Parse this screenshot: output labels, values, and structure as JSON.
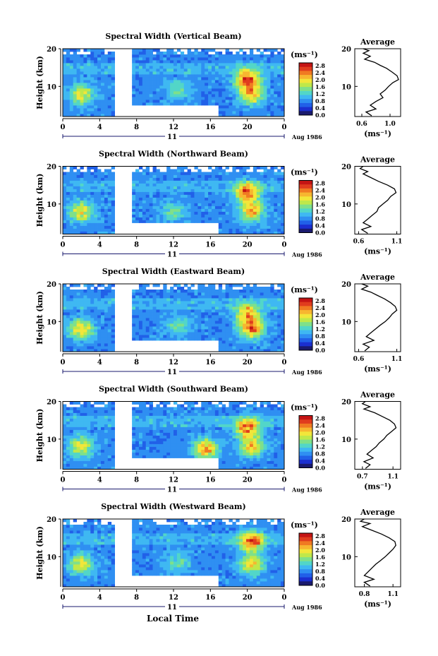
{
  "figure": {
    "xlabel": "Local Time",
    "day_label": "11",
    "month_label": "Aug 1986",
    "colorbar": {
      "unit_label": "(ms⁻¹)",
      "ticks": [
        "2.8",
        "2.4",
        "2.0",
        "1.6",
        "1.2",
        "0.8",
        "0.4",
        "0.0"
      ],
      "colors": [
        "#1a1a6e",
        "#1b2fd0",
        "#2160e8",
        "#2f8ff2",
        "#3fb8f2",
        "#52d6c8",
        "#7fe08a",
        "#bfe84a",
        "#f2e63a",
        "#f7b630",
        "#f07a22",
        "#e03c1e",
        "#c41414"
      ]
    },
    "profile_title": "Average",
    "profile_xlabel": "(ms⁻¹)"
  },
  "chart_data": [
    {
      "type": "heatmap",
      "title": "Spectral Width (Vertical Beam)",
      "ylabel": "Height (km)",
      "xlim": [
        0,
        24
      ],
      "ylim": [
        2,
        20
      ],
      "xticks": [
        "0",
        "4",
        "8",
        "12",
        "16",
        "20",
        "0"
      ],
      "yticks": [
        "20",
        "10"
      ],
      "data_gaps": [
        {
          "x": [
            5.8,
            7.5
          ],
          "y": [
            2,
            20
          ]
        },
        {
          "x": [
            7.5,
            16.8
          ],
          "y": [
            2,
            4.8
          ]
        }
      ],
      "hotspots": [
        {
          "x": 2,
          "y": 8,
          "v": 2.0
        },
        {
          "x": 20,
          "y": 12,
          "v": 2.6
        },
        {
          "x": 20.5,
          "y": 8,
          "v": 2.2
        },
        {
          "x": 12.5,
          "y": 9,
          "v": 1.4
        }
      ],
      "profile": {
        "title": "Average",
        "xticks": [
          "0.6",
          "1.0"
        ],
        "xlim": [
          0.5,
          1.15
        ],
        "yticks": [
          "20",
          "10"
        ],
        "points": [
          [
            0.62,
            20
          ],
          [
            0.7,
            19.5
          ],
          [
            0.62,
            18.8
          ],
          [
            0.72,
            18
          ],
          [
            0.64,
            17.2
          ],
          [
            0.78,
            16.4
          ],
          [
            0.86,
            15.6
          ],
          [
            0.95,
            14.8
          ],
          [
            1.03,
            13.8
          ],
          [
            1.1,
            12.8
          ],
          [
            1.12,
            11.8
          ],
          [
            1.04,
            11
          ],
          [
            0.98,
            10
          ],
          [
            0.93,
            9
          ],
          [
            0.86,
            8
          ],
          [
            0.9,
            7
          ],
          [
            0.8,
            6
          ],
          [
            0.72,
            5
          ],
          [
            0.8,
            4
          ],
          [
            0.66,
            3.2
          ],
          [
            0.74,
            2.2
          ]
        ]
      }
    },
    {
      "type": "heatmap",
      "title": "Spectral Width (Northward Beam)",
      "ylabel": "Height (km)",
      "xlim": [
        0,
        24
      ],
      "ylim": [
        2,
        20
      ],
      "xticks": [
        "0",
        "4",
        "8",
        "12",
        "16",
        "20",
        "0"
      ],
      "yticks": [
        "20",
        "10"
      ],
      "data_gaps": [
        {
          "x": [
            5.8,
            7.5
          ],
          "y": [
            2,
            20
          ]
        },
        {
          "x": [
            7.5,
            16.8
          ],
          "y": [
            2,
            4.8
          ]
        }
      ],
      "hotspots": [
        {
          "x": 2,
          "y": 8,
          "v": 2.0
        },
        {
          "x": 20,
          "y": 13,
          "v": 2.5
        },
        {
          "x": 20.5,
          "y": 8,
          "v": 2.2
        },
        {
          "x": 12,
          "y": 8,
          "v": 1.4
        }
      ],
      "profile": {
        "title": "Average",
        "xticks": [
          "0.6",
          "1.1"
        ],
        "xlim": [
          0.55,
          1.15
        ],
        "yticks": [
          "20",
          "10"
        ],
        "points": [
          [
            0.66,
            20
          ],
          [
            0.62,
            19.4
          ],
          [
            0.72,
            18.6
          ],
          [
            0.66,
            18
          ],
          [
            0.76,
            17
          ],
          [
            0.86,
            16
          ],
          [
            0.98,
            15
          ],
          [
            1.07,
            14
          ],
          [
            1.09,
            13
          ],
          [
            1.02,
            12
          ],
          [
            0.98,
            11
          ],
          [
            0.92,
            10
          ],
          [
            0.86,
            9
          ],
          [
            0.84,
            8
          ],
          [
            0.78,
            7
          ],
          [
            0.72,
            6
          ],
          [
            0.66,
            5
          ],
          [
            0.76,
            4
          ],
          [
            0.64,
            3.2
          ],
          [
            0.72,
            2.2
          ]
        ]
      }
    },
    {
      "type": "heatmap",
      "title": "Spectral Width (Eastward Beam)",
      "ylabel": "Height (km)",
      "xlim": [
        0,
        24
      ],
      "ylim": [
        2,
        20
      ],
      "xticks": [
        "0",
        "4",
        "8",
        "12",
        "16",
        "20",
        "0"
      ],
      "yticks": [
        "20",
        "10"
      ],
      "data_gaps": [
        {
          "x": [
            5.8,
            7.5
          ],
          "y": [
            2,
            20
          ]
        },
        {
          "x": [
            7.5,
            16.8
          ],
          "y": [
            2,
            4.8
          ]
        }
      ],
      "hotspots": [
        {
          "x": 2,
          "y": 8,
          "v": 2.2
        },
        {
          "x": 20,
          "y": 12,
          "v": 2.3
        },
        {
          "x": 20.5,
          "y": 8,
          "v": 2.4
        },
        {
          "x": 12.5,
          "y": 9,
          "v": 1.4
        }
      ],
      "profile": {
        "title": "Average",
        "xticks": [
          "0.6",
          "1.1"
        ],
        "xlim": [
          0.55,
          1.15
        ],
        "yticks": [
          "20",
          "10"
        ],
        "points": [
          [
            0.64,
            20
          ],
          [
            0.72,
            19.4
          ],
          [
            0.64,
            18.6
          ],
          [
            0.76,
            17.8
          ],
          [
            0.84,
            17
          ],
          [
            0.94,
            16
          ],
          [
            1.02,
            15
          ],
          [
            1.08,
            14
          ],
          [
            1.1,
            13
          ],
          [
            1.04,
            12
          ],
          [
            1.0,
            11
          ],
          [
            0.95,
            10
          ],
          [
            0.88,
            9
          ],
          [
            0.82,
            8
          ],
          [
            0.76,
            7
          ],
          [
            0.7,
            6
          ],
          [
            0.8,
            5
          ],
          [
            0.66,
            4
          ],
          [
            0.74,
            3.2
          ],
          [
            0.68,
            2.2
          ]
        ]
      }
    },
    {
      "type": "heatmap",
      "title": "Spectral Width (Southward Beam)",
      "ylabel": "Height (km)",
      "xlim": [
        0,
        24
      ],
      "ylim": [
        2,
        20
      ],
      "xticks": [
        "0",
        "4",
        "8",
        "12",
        "16",
        "20",
        "0"
      ],
      "yticks": [
        "20",
        "10"
      ],
      "data_gaps": [
        {
          "x": [
            5.8,
            7.5
          ],
          "y": [
            2,
            20
          ]
        },
        {
          "x": [
            7.5,
            16.8
          ],
          "y": [
            2,
            4.8
          ]
        }
      ],
      "hotspots": [
        {
          "x": 2,
          "y": 8,
          "v": 2.0
        },
        {
          "x": 20,
          "y": 13,
          "v": 2.5
        },
        {
          "x": 20.5,
          "y": 8,
          "v": 2.1
        },
        {
          "x": 15.5,
          "y": 7.5,
          "v": 2.4
        }
      ],
      "profile": {
        "title": "Average",
        "xticks": [
          "0.7",
          "1.1"
        ],
        "xlim": [
          0.6,
          1.2
        ],
        "yticks": [
          "20",
          "10"
        ],
        "points": [
          [
            0.74,
            20
          ],
          [
            0.7,
            19.4
          ],
          [
            0.8,
            18.6
          ],
          [
            0.72,
            18
          ],
          [
            0.86,
            17
          ],
          [
            0.96,
            16
          ],
          [
            1.06,
            15
          ],
          [
            1.12,
            14
          ],
          [
            1.14,
            13
          ],
          [
            1.08,
            12
          ],
          [
            1.02,
            11
          ],
          [
            0.98,
            10
          ],
          [
            0.92,
            9
          ],
          [
            0.88,
            8
          ],
          [
            0.82,
            7
          ],
          [
            0.76,
            6
          ],
          [
            0.84,
            5
          ],
          [
            0.72,
            4
          ],
          [
            0.8,
            3.2
          ],
          [
            0.74,
            2.2
          ]
        ]
      }
    },
    {
      "type": "heatmap",
      "title": "Spectral Width (Westward Beam)",
      "ylabel": "Height (km)",
      "xlim": [
        0,
        24
      ],
      "ylim": [
        2,
        20
      ],
      "xticks": [
        "0",
        "4",
        "8",
        "12",
        "16",
        "20",
        "0"
      ],
      "yticks": [
        "20",
        "10"
      ],
      "data_gaps": [
        {
          "x": [
            5.8,
            7.5
          ],
          "y": [
            2,
            20
          ]
        },
        {
          "x": [
            7.5,
            16.8
          ],
          "y": [
            2,
            4.8
          ]
        }
      ],
      "hotspots": [
        {
          "x": 2,
          "y": 8,
          "v": 2.0
        },
        {
          "x": 20.5,
          "y": 14,
          "v": 2.6
        },
        {
          "x": 20.5,
          "y": 8,
          "v": 2.1
        },
        {
          "x": 12.5,
          "y": 8.5,
          "v": 1.4
        }
      ],
      "profile": {
        "title": "Average",
        "xticks": [
          "0.8",
          "1.1"
        ],
        "xlim": [
          0.7,
          1.18
        ],
        "yticks": [
          "20",
          "10"
        ],
        "points": [
          [
            0.8,
            20
          ],
          [
            0.76,
            19.4
          ],
          [
            0.86,
            18.8
          ],
          [
            0.78,
            18
          ],
          [
            0.88,
            17
          ],
          [
            0.98,
            16
          ],
          [
            1.06,
            15
          ],
          [
            1.12,
            14
          ],
          [
            1.13,
            13
          ],
          [
            1.1,
            12
          ],
          [
            1.06,
            11
          ],
          [
            1.02,
            10
          ],
          [
            0.97,
            9
          ],
          [
            0.92,
            8
          ],
          [
            0.88,
            7
          ],
          [
            0.84,
            6
          ],
          [
            0.8,
            5
          ],
          [
            0.9,
            4
          ],
          [
            0.8,
            3.2
          ],
          [
            0.86,
            2.2
          ]
        ]
      }
    }
  ]
}
